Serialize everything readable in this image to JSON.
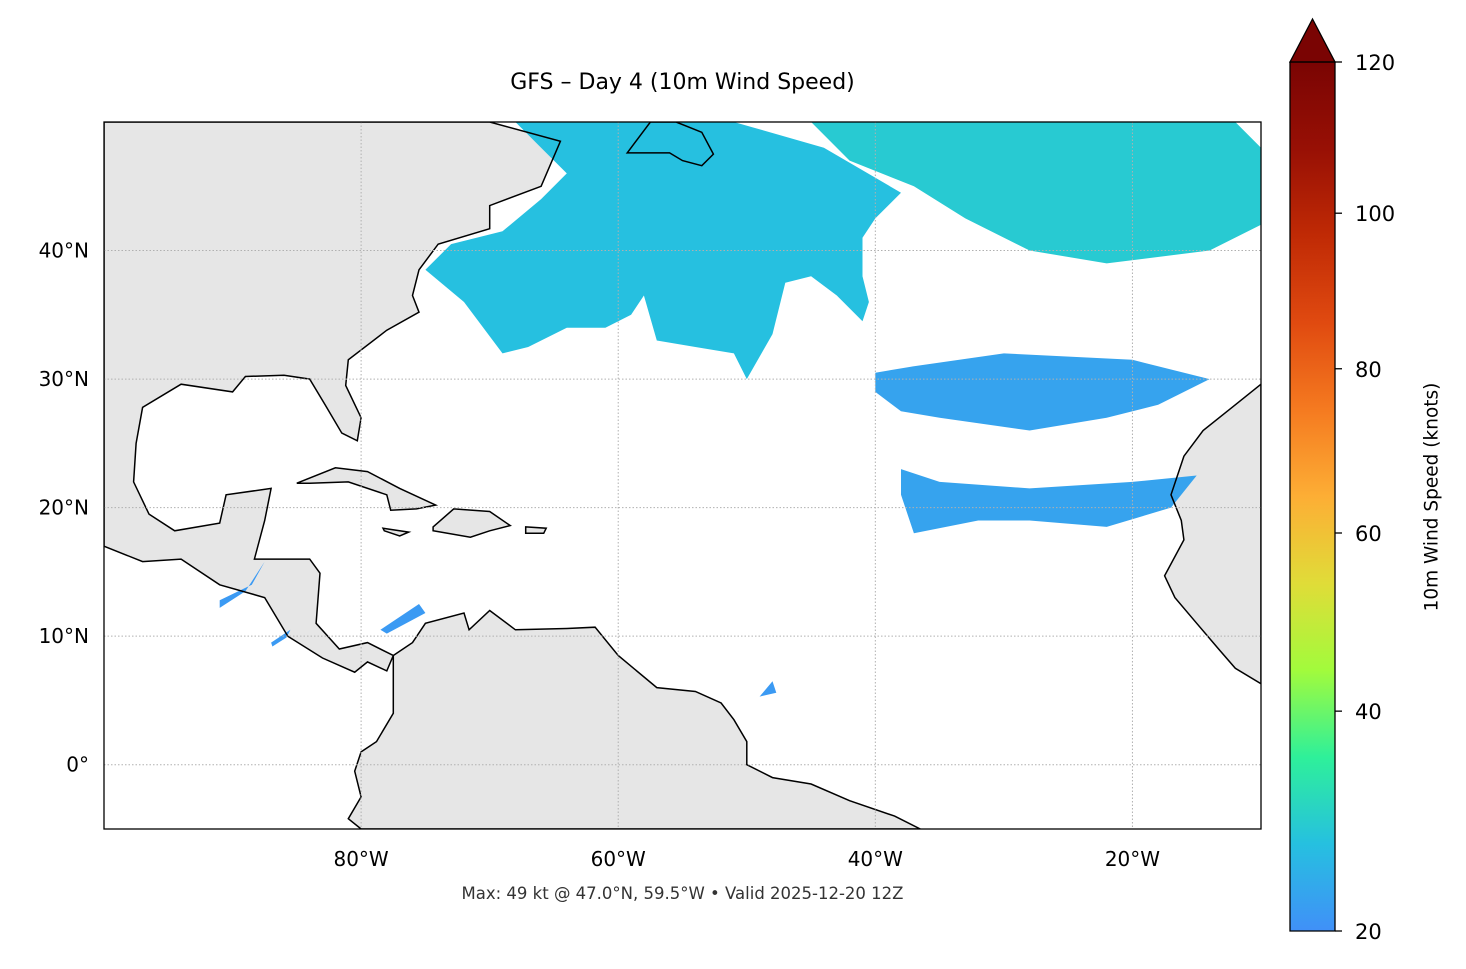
{
  "title": "GFS – Day 4 (10m Wind Speed)",
  "footer": "Max: 49 kt @ 47.0°N, 59.5°W • Valid 2025-12-20 12Z",
  "map": {
    "projection": "PlateCarree",
    "extent_lon": [
      -100,
      -10
    ],
    "extent_lat": [
      -5,
      50
    ],
    "gridlines": true,
    "land_color": "#e6e6e6",
    "coast_color": "#000000",
    "lon_ticks": [
      {
        "value": -80,
        "label": "80°W"
      },
      {
        "value": -60,
        "label": "60°W"
      },
      {
        "value": -40,
        "label": "40°W"
      },
      {
        "value": -20,
        "label": "20°W"
      }
    ],
    "lat_ticks": [
      {
        "value": 0,
        "label": "0°"
      },
      {
        "value": 10,
        "label": "10°N"
      },
      {
        "value": 20,
        "label": "20°N"
      },
      {
        "value": 30,
        "label": "30°N"
      },
      {
        "value": 40,
        "label": "40°N"
      }
    ],
    "land": [
      [
        [
          -100,
          50
        ],
        [
          -70,
          50
        ],
        [
          -64.5,
          48.5
        ],
        [
          -66,
          45
        ],
        [
          -70,
          43.5
        ],
        [
          -70,
          41.7
        ],
        [
          -74,
          40.5
        ],
        [
          -75.5,
          38.5
        ],
        [
          -76,
          36.5
        ],
        [
          -75.5,
          35.2
        ],
        [
          -78,
          33.8
        ],
        [
          -81,
          31.5
        ],
        [
          -81.2,
          29.5
        ],
        [
          -80,
          27
        ],
        [
          -80.3,
          25.2
        ],
        [
          -81.5,
          25.8
        ],
        [
          -82.8,
          28
        ],
        [
          -84,
          30
        ],
        [
          -86,
          30.3
        ],
        [
          -89,
          30.2
        ],
        [
          -90,
          29
        ],
        [
          -94,
          29.6
        ],
        [
          -97,
          27.8
        ],
        [
          -97.5,
          25
        ],
        [
          -97.7,
          22
        ],
        [
          -96.5,
          19.5
        ],
        [
          -94.5,
          18.2
        ],
        [
          -91,
          18.8
        ],
        [
          -90.5,
          21
        ],
        [
          -87,
          21.5
        ],
        [
          -87.5,
          19
        ],
        [
          -88.3,
          16
        ],
        [
          -84,
          16
        ],
        [
          -83.2,
          14.9
        ],
        [
          -83.5,
          11
        ],
        [
          -81.7,
          9
        ],
        [
          -79.5,
          9.5
        ],
        [
          -77.5,
          8.5
        ],
        [
          -78,
          7.3
        ],
        [
          -79.5,
          8
        ],
        [
          -80.5,
          7.2
        ],
        [
          -83,
          8.3
        ],
        [
          -85.7,
          10
        ],
        [
          -87.5,
          13
        ],
        [
          -91,
          14
        ],
        [
          -94,
          16
        ],
        [
          -97,
          15.8
        ],
        [
          -100,
          17
        ]
      ],
      [
        [
          -77.5,
          8.5
        ],
        [
          -76,
          9.5
        ],
        [
          -75,
          11
        ],
        [
          -72,
          11.8
        ],
        [
          -71.6,
          10.5
        ],
        [
          -70,
          12
        ],
        [
          -68,
          10.5
        ],
        [
          -64,
          10.6
        ],
        [
          -61.8,
          10.7
        ],
        [
          -60,
          8.5
        ],
        [
          -57,
          6
        ],
        [
          -54,
          5.7
        ],
        [
          -52,
          4.8
        ],
        [
          -51,
          3.5
        ],
        [
          -50,
          1.8
        ],
        [
          -50,
          0
        ],
        [
          -48,
          -1
        ],
        [
          -45,
          -1.5
        ],
        [
          -42,
          -2.8
        ],
        [
          -38.5,
          -4
        ],
        [
          -36.5,
          -5
        ],
        [
          -80,
          -5
        ],
        [
          -81,
          -4.2
        ],
        [
          -80,
          -2.5
        ],
        [
          -80.5,
          -0.5
        ],
        [
          -80,
          1
        ],
        [
          -78.8,
          1.8
        ],
        [
          -77.5,
          4
        ],
        [
          -77.5,
          7
        ]
      ],
      [
        [
          -85,
          21.9
        ],
        [
          -82,
          23.1
        ],
        [
          -79.5,
          22.8
        ],
        [
          -77,
          21.5
        ],
        [
          -74.2,
          20.2
        ],
        [
          -75.7,
          19.9
        ],
        [
          -77.7,
          19.8
        ],
        [
          -78,
          21
        ],
        [
          -81,
          22
        ],
        [
          -84,
          21.9
        ]
      ],
      [
        [
          -74.4,
          18.5
        ],
        [
          -72.8,
          19.9
        ],
        [
          -70,
          19.7
        ],
        [
          -68.4,
          18.6
        ],
        [
          -70,
          18.2
        ],
        [
          -71.5,
          17.7
        ],
        [
          -74.4,
          18.2
        ]
      ],
      [
        [
          -78.3,
          18.4
        ],
        [
          -76.3,
          18.1
        ],
        [
          -77,
          17.8
        ],
        [
          -78.2,
          18.2
        ]
      ],
      [
        [
          -67.2,
          18.5
        ],
        [
          -65.6,
          18.4
        ],
        [
          -65.8,
          18
        ],
        [
          -67.2,
          18
        ]
      ],
      [
        [
          -59.3,
          47.6
        ],
        [
          -57.5,
          50
        ],
        [
          -55.5,
          50
        ],
        [
          -53.5,
          49.2
        ],
        [
          -52.6,
          47.5
        ],
        [
          -53.5,
          46.6
        ],
        [
          -55,
          47
        ],
        [
          -56,
          47.6
        ]
      ],
      [
        [
          -10,
          29.6
        ],
        [
          -12,
          28
        ],
        [
          -14.5,
          26
        ],
        [
          -16,
          24
        ],
        [
          -17,
          21
        ],
        [
          -16.2,
          19
        ],
        [
          -16,
          17.5
        ],
        [
          -17.5,
          14.7
        ],
        [
          -16.7,
          13
        ],
        [
          -15,
          11
        ],
        [
          -13.3,
          9
        ],
        [
          -12,
          7.5
        ],
        [
          -10,
          6.3
        ]
      ]
    ],
    "wind_patches_kt": [
      {
        "kt": 30,
        "poly": [
          [
            -75,
            38.5
          ],
          [
            -73,
            40.5
          ],
          [
            -69,
            41.5
          ],
          [
            -66,
            44
          ],
          [
            -64,
            46
          ],
          [
            -66,
            48
          ],
          [
            -68,
            50
          ],
          [
            -51,
            50
          ],
          [
            -44,
            48
          ],
          [
            -38,
            44.5
          ],
          [
            -40,
            42.5
          ],
          [
            -41,
            41
          ],
          [
            -41,
            38
          ],
          [
            -40.5,
            36
          ],
          [
            -41,
            34.5
          ],
          [
            -43,
            36.5
          ],
          [
            -45,
            38
          ],
          [
            -47,
            37.5
          ],
          [
            -48,
            33.5
          ],
          [
            -50,
            30
          ],
          [
            -51,
            32
          ],
          [
            -54,
            32.5
          ],
          [
            -57,
            33
          ],
          [
            -58,
            36.5
          ],
          [
            -59,
            35
          ],
          [
            -61,
            34
          ],
          [
            -64,
            34
          ],
          [
            -67,
            32.5
          ],
          [
            -69,
            32
          ],
          [
            -72,
            36
          ]
        ]
      },
      {
        "kt": 32,
        "poly": [
          [
            -45,
            50
          ],
          [
            -12,
            50
          ],
          [
            -10,
            48
          ],
          [
            -10,
            42
          ],
          [
            -14,
            40
          ],
          [
            -22,
            39
          ],
          [
            -28,
            40
          ],
          [
            -33,
            42.5
          ],
          [
            -37,
            45
          ],
          [
            -42,
            47
          ]
        ]
      },
      {
        "kt": 24,
        "poly": [
          [
            -40,
            30.5
          ],
          [
            -37,
            31
          ],
          [
            -30,
            32
          ],
          [
            -20,
            31.5
          ],
          [
            -14,
            30
          ],
          [
            -18,
            28
          ],
          [
            -22,
            27
          ],
          [
            -28,
            26
          ],
          [
            -35,
            27
          ],
          [
            -38,
            27.5
          ],
          [
            -40,
            29
          ]
        ]
      },
      {
        "kt": 24,
        "poly": [
          [
            -38,
            23
          ],
          [
            -35,
            22
          ],
          [
            -28,
            21.5
          ],
          [
            -20,
            22
          ],
          [
            -15,
            22.5
          ],
          [
            -17,
            20
          ],
          [
            -22,
            18.5
          ],
          [
            -28,
            19
          ],
          [
            -32,
            19
          ],
          [
            -37,
            18
          ],
          [
            -38,
            21
          ]
        ]
      },
      {
        "kt": 22,
        "poly": [
          [
            -91,
            12.2
          ],
          [
            -89,
            13.5
          ],
          [
            -87.5,
            15.8
          ],
          [
            -88.5,
            14
          ],
          [
            -91,
            12.8
          ]
        ]
      },
      {
        "kt": 22,
        "poly": [
          [
            -78.5,
            10.5
          ],
          [
            -75.5,
            12.5
          ],
          [
            -75,
            11.8
          ],
          [
            -78,
            10.2
          ]
        ]
      },
      {
        "kt": 22,
        "poly": [
          [
            -87,
            9.5
          ],
          [
            -85.5,
            10.5
          ],
          [
            -85.8,
            9.9
          ],
          [
            -86.9,
            9.2
          ]
        ]
      },
      {
        "kt": 22,
        "poly": [
          [
            -49,
            5.3
          ],
          [
            -48,
            6.5
          ],
          [
            -47.7,
            5.6
          ]
        ]
      }
    ]
  },
  "colorbar": {
    "label": "10m Wind Speed (knots)",
    "colormap": "turbo",
    "min": 20,
    "max": 120,
    "extend": "max",
    "ticks": [
      20,
      40,
      60,
      80,
      100,
      120
    ],
    "colors": [
      "#4090f8",
      "#26c0e0",
      "#2ef09a",
      "#a2fb3c",
      "#e0dc38",
      "#fdae35",
      "#f57a20",
      "#e04a10",
      "#c02a05",
      "#981005",
      "#7a0403"
    ]
  }
}
